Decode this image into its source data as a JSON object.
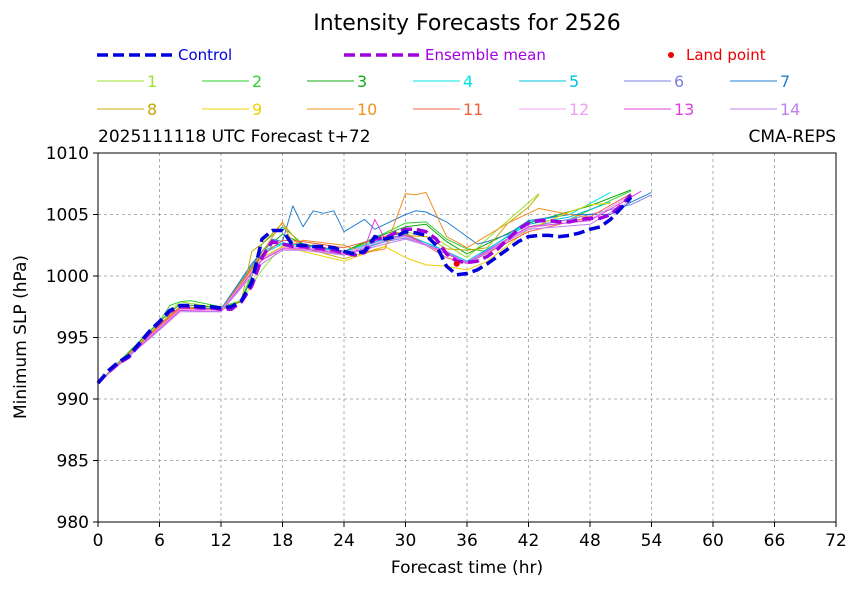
{
  "chart_data": {
    "type": "line",
    "title": "Intensity Forecasts for 2526",
    "subtitle_left": "2025111118 UTC Forecast t+72",
    "subtitle_right": "CMA-REPS",
    "xlabel": "Forecast time (hr)",
    "ylabel": "Minimum SLP (hPa)",
    "xlim": [
      0,
      72
    ],
    "ylim": [
      980,
      1010
    ],
    "xticks": [
      0,
      6,
      12,
      18,
      24,
      30,
      36,
      42,
      48,
      54,
      60,
      66,
      72
    ],
    "yticks": [
      980,
      985,
      990,
      995,
      1000,
      1005,
      1010
    ],
    "grid": true,
    "legend": {
      "control": "Control",
      "mean": "Ensemble mean",
      "land": "Land point"
    },
    "colors": {
      "control": "#0000dd",
      "mean": "#a000e0",
      "land": "#ee0000"
    },
    "control": {
      "x": [
        0,
        1,
        2,
        3,
        4,
        5,
        6,
        7,
        8,
        9,
        10,
        11,
        12,
        13,
        14,
        15,
        16,
        17,
        18,
        19,
        20,
        21,
        22,
        23,
        24,
        25,
        26,
        27,
        28,
        29,
        30,
        31,
        32,
        33,
        34,
        35,
        36,
        37,
        38,
        39,
        40,
        41,
        42,
        43,
        44,
        45,
        46,
        47,
        48,
        49,
        50,
        51,
        52
      ],
      "y": [
        991.3,
        992.3,
        993.0,
        993.5,
        994.5,
        995.5,
        996.3,
        997.2,
        997.6,
        997.6,
        997.5,
        997.5,
        997.4,
        997.5,
        998.0,
        999.5,
        1003.0,
        1003.7,
        1003.7,
        1002.5,
        1002.5,
        1002.4,
        1002.4,
        1002.3,
        1002.0,
        1001.8,
        1002.0,
        1003.2,
        1003.0,
        1003.2,
        1003.6,
        1003.5,
        1003.3,
        1002.5,
        1000.8,
        1000.1,
        1000.2,
        1000.5,
        1001.0,
        1001.6,
        1002.2,
        1002.8,
        1003.2,
        1003.3,
        1003.3,
        1003.2,
        1003.3,
        1003.5,
        1003.8,
        1004.0,
        1004.6,
        1005.5,
        1006.4
      ]
    },
    "mean": {
      "x": [
        0,
        1,
        2,
        3,
        4,
        5,
        6,
        7,
        8,
        9,
        10,
        11,
        12,
        13,
        14,
        15,
        16,
        17,
        18,
        19,
        20,
        21,
        22,
        23,
        24,
        25,
        26,
        27,
        28,
        29,
        30,
        31,
        32,
        33,
        34,
        35,
        36,
        37,
        38,
        39,
        40,
        41,
        42,
        43,
        44,
        45,
        46,
        47,
        48,
        49,
        50,
        51,
        52
      ],
      "y": [
        991.3,
        992.2,
        992.9,
        993.4,
        994.4,
        995.4,
        996.2,
        997.1,
        997.5,
        997.5,
        997.4,
        997.4,
        997.3,
        997.3,
        997.9,
        999.2,
        1001.5,
        1002.8,
        1002.6,
        1002.4,
        1002.4,
        1002.3,
        1002.2,
        1002.1,
        1001.9,
        1001.7,
        1001.9,
        1003.0,
        1003.1,
        1003.5,
        1003.8,
        1003.8,
        1003.6,
        1003.0,
        1001.8,
        1001.2,
        1001.1,
        1001.2,
        1001.6,
        1002.2,
        1003.0,
        1003.8,
        1004.3,
        1004.5,
        1004.5,
        1004.4,
        1004.4,
        1004.6,
        1004.7,
        1004.7,
        1005.0,
        1005.7,
        1006.6
      ]
    },
    "land_points": [
      {
        "x": 35,
        "y": 1001.0
      }
    ],
    "members": [
      {
        "name": "1",
        "color": "#9be22e",
        "x": [
          0,
          6,
          8,
          12,
          14,
          16,
          18,
          20,
          24,
          28,
          30,
          33,
          36,
          39,
          43
        ],
        "y": [
          991.3,
          996.3,
          997.9,
          997.4,
          998.0,
          1000.5,
          1002.5,
          1002.5,
          1002.0,
          1003.2,
          1003.6,
          1003.0,
          1001.5,
          1003.8,
          1006.7
        ]
      },
      {
        "name": "2",
        "color": "#2ed12e",
        "x": [
          0,
          6,
          7,
          8,
          9,
          12,
          14,
          16,
          18,
          20,
          24,
          28,
          30,
          32,
          34,
          36,
          38,
          42,
          46,
          52
        ],
        "y": [
          991.3,
          996.3,
          997.6,
          997.9,
          998.0,
          997.5,
          998.0,
          1002.6,
          1004.0,
          1002.6,
          1002.0,
          1003.5,
          1004.3,
          1004.4,
          1003.0,
          1002.2,
          1002.0,
          1004.0,
          1004.6,
          1006.9
        ]
      },
      {
        "name": "3",
        "color": "#11aa11",
        "x": [
          0,
          6,
          8,
          12,
          14,
          16,
          18,
          20,
          24,
          28,
          30,
          32,
          34,
          36,
          42,
          48,
          52
        ],
        "y": [
          991.3,
          996.3,
          997.7,
          997.4,
          997.9,
          1002.0,
          1003.4,
          1002.6,
          1002.0,
          1003.4,
          1004.0,
          1004.2,
          1002.8,
          1001.8,
          1004.3,
          1005.7,
          1007.0
        ]
      },
      {
        "name": "4",
        "color": "#00e5e5",
        "x": [
          0,
          6,
          8,
          12,
          16,
          18,
          20,
          24,
          28,
          30,
          33,
          36,
          42,
          46,
          50
        ],
        "y": [
          991.3,
          996.1,
          997.5,
          997.3,
          1001.8,
          1002.6,
          1002.5,
          1001.9,
          1002.8,
          1003.3,
          1002.4,
          1001.0,
          1004.4,
          1005.0,
          1006.8
        ]
      },
      {
        "name": "5",
        "color": "#00c0e0",
        "x": [
          0,
          6,
          8,
          12,
          16,
          18,
          20,
          24,
          28,
          30,
          34,
          36,
          42,
          46,
          50
        ],
        "y": [
          991.3,
          996.0,
          997.4,
          997.3,
          1002.0,
          1002.7,
          1002.5,
          1002.0,
          1003.0,
          1003.4,
          1002.0,
          1001.2,
          1004.2,
          1004.8,
          1006.0
        ]
      },
      {
        "name": "6",
        "color": "#8080e8",
        "x": [
          0,
          6,
          8,
          12,
          16,
          18,
          20,
          24,
          28,
          30,
          34,
          36,
          42,
          46,
          52,
          54
        ],
        "y": [
          991.3,
          995.9,
          997.3,
          997.3,
          1001.4,
          1002.3,
          1002.4,
          1001.7,
          1002.8,
          1003.1,
          1002.0,
          1001.0,
          1004.0,
          1004.6,
          1005.8,
          1006.6
        ]
      },
      {
        "name": "7",
        "color": "#2080d0",
        "x": [
          0,
          6,
          8,
          12,
          15,
          17,
          18,
          19,
          20,
          21,
          22,
          23,
          24,
          26,
          27,
          28,
          30,
          31,
          32,
          34,
          36,
          37,
          38,
          40,
          42,
          46,
          50,
          52,
          54
        ],
        "y": [
          991.3,
          996.0,
          997.5,
          997.3,
          1001.0,
          1003.0,
          1002.8,
          1005.7,
          1004.0,
          1005.3,
          1005.1,
          1005.3,
          1003.6,
          1004.6,
          1003.8,
          1004.2,
          1005.0,
          1005.3,
          1005.2,
          1004.4,
          1003.2,
          1002.6,
          1002.8,
          1003.4,
          1004.5,
          1005.0,
          1005.0,
          1006.0,
          1006.8
        ]
      },
      {
        "name": "8",
        "color": "#c8a800",
        "x": [
          0,
          6,
          8,
          12,
          14,
          15,
          16,
          18,
          20,
          24,
          28,
          29,
          30,
          32,
          34,
          36,
          38,
          40,
          42,
          43
        ],
        "y": [
          991.3,
          996.1,
          997.5,
          997.2,
          998.0,
          1002.0,
          1002.6,
          1004.3,
          1002.3,
          1001.4,
          1002.4,
          1003.6,
          1003.3,
          1003.2,
          1002.2,
          1002.1,
          1002.3,
          1004.3,
          1005.6,
          1006.6
        ]
      },
      {
        "name": "9",
        "color": "#f0d000",
        "x": [
          0,
          6,
          8,
          12,
          16,
          18,
          20,
          24,
          28,
          30,
          32,
          34,
          36,
          38,
          42,
          46,
          48,
          50
        ],
        "y": [
          991.3,
          996.0,
          997.4,
          997.2,
          1001.5,
          1002.4,
          1002.0,
          1001.2,
          1002.4,
          1001.5,
          1000.9,
          1000.8,
          1000.5,
          1001.2,
          1003.8,
          1005.2,
          1005.8,
          1005.9
        ]
      },
      {
        "name": "10",
        "color": "#f09020",
        "x": [
          0,
          6,
          8,
          12,
          16,
          18,
          19,
          20,
          24,
          26,
          28,
          30,
          31,
          32,
          33,
          34,
          36,
          40,
          43,
          46,
          48
        ],
        "y": [
          991.3,
          996.0,
          997.5,
          997.2,
          1001.9,
          1004.4,
          1002.6,
          1002.9,
          1002.5,
          1001.9,
          1002.2,
          1006.7,
          1006.6,
          1006.8,
          1005.0,
          1003.2,
          1002.3,
          1004.3,
          1005.5,
          1005.0,
          1004.8
        ]
      },
      {
        "name": "11",
        "color": "#f06040",
        "x": [
          0,
          6,
          8,
          12,
          16,
          18,
          20,
          24,
          28,
          30,
          34,
          36,
          42,
          48,
          52
        ],
        "y": [
          991.3,
          995.9,
          997.4,
          997.2,
          1001.7,
          1002.9,
          1002.8,
          1002.3,
          1003.2,
          1003.5,
          1001.5,
          1001.0,
          1003.6,
          1004.8,
          1006.7
        ]
      },
      {
        "name": "12",
        "color": "#f0a0f0",
        "x": [
          0,
          6,
          8,
          12,
          16,
          18,
          20,
          24,
          28,
          30,
          34,
          36,
          42,
          48,
          52
        ],
        "y": [
          991.3,
          995.8,
          997.3,
          997.2,
          1001.4,
          1002.3,
          1002.3,
          1001.9,
          1002.9,
          1003.2,
          1001.8,
          1001.0,
          1003.9,
          1004.6,
          1006.6
        ]
      },
      {
        "name": "13",
        "color": "#e040e0",
        "x": [
          0,
          6,
          8,
          12,
          16,
          18,
          20,
          24,
          26,
          27,
          28,
          30,
          34,
          36,
          42,
          48,
          52,
          53
        ],
        "y": [
          991.3,
          995.7,
          997.2,
          997.1,
          1001.3,
          1002.2,
          1002.2,
          1001.8,
          1002.2,
          1004.6,
          1003.0,
          1003.3,
          1001.8,
          1001.1,
          1004.0,
          1004.5,
          1006.4,
          1006.9
        ]
      },
      {
        "name": "14",
        "color": "#c080f0",
        "x": [
          0,
          6,
          8,
          12,
          16,
          18,
          20,
          24,
          28,
          30,
          34,
          36,
          42,
          48,
          52
        ],
        "y": [
          991.3,
          995.6,
          997.1,
          997.1,
          1001.0,
          1002.1,
          1002.1,
          1001.7,
          1002.6,
          1003.0,
          1002.0,
          1001.0,
          1003.8,
          1004.2,
          1006.1
        ]
      }
    ]
  }
}
